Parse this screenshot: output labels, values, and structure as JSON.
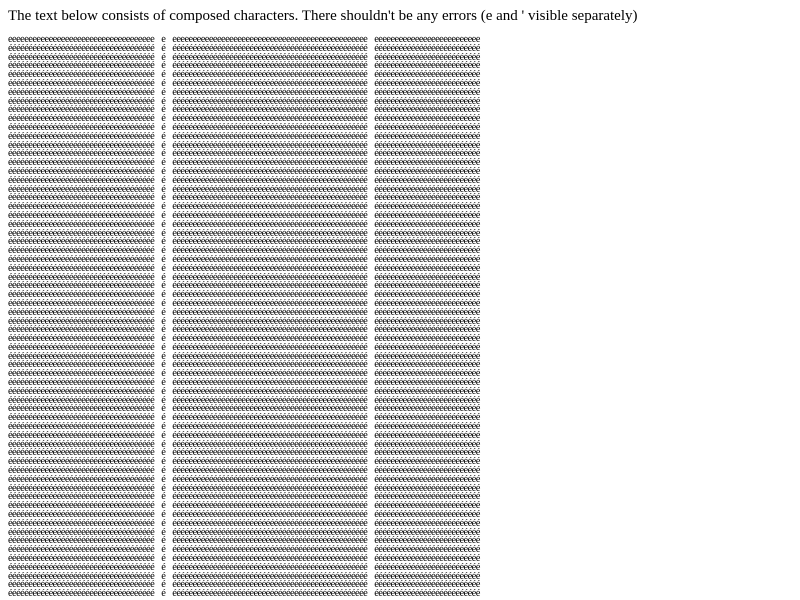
{
  "intro_text": "The text below consists of composed characters. There shouldn't be any errors (e and ' visible separately)",
  "composed_text": {
    "line_count": 64,
    "line_text": "éééééééééééééééééééééééééééééééééééé é éééééééééééééééééééééééééééééééééééééééééééééééé éééééééééééééééééééééééééé"
  }
}
